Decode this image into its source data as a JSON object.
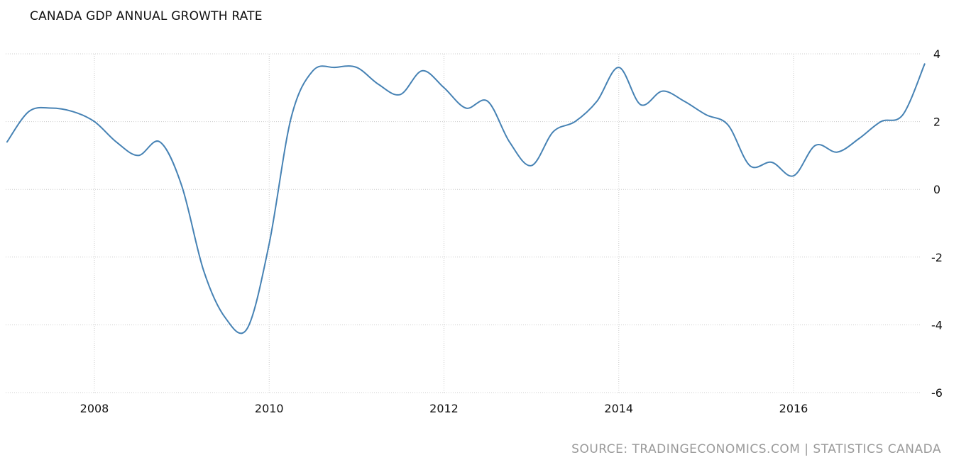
{
  "chart_data": {
    "type": "line",
    "title": "CANADA GDP ANNUAL GROWTH RATE",
    "source": "SOURCE: TRADINGECONOMICS.COM | STATISTICS CANADA",
    "xlabel": "",
    "ylabel": "",
    "x_ticks": [
      "2008",
      "2010",
      "2012",
      "2014",
      "2016"
    ],
    "y_ticks": [
      "4",
      "2",
      "0",
      "-2",
      "-4",
      "-6"
    ],
    "ylim": [
      -6,
      4
    ],
    "grid": true,
    "colors": {
      "line": "#4682b4",
      "grid": "#cccccc"
    },
    "series": [
      {
        "x": [
          2007.0,
          2007.25,
          2007.5,
          2007.75,
          2008.0,
          2008.25,
          2008.5,
          2008.75,
          2009.0,
          2009.25,
          2009.5,
          2009.75,
          2010.0,
          2010.25,
          2010.5,
          2010.75,
          2011.0,
          2011.25,
          2011.5,
          2011.75,
          2012.0,
          2012.25,
          2012.5,
          2012.75,
          2013.0,
          2013.25,
          2013.5,
          2013.75,
          2014.0,
          2014.25,
          2014.5,
          2014.75,
          2015.0,
          2015.25,
          2015.5,
          2015.75,
          2016.0,
          2016.25,
          2016.5,
          2016.75,
          2017.0,
          2017.25,
          2017.5
        ],
        "values": [
          1.4,
          2.3,
          2.4,
          2.3,
          2.0,
          1.4,
          1.0,
          1.4,
          0.1,
          -2.4,
          -3.8,
          -4.1,
          -1.6,
          2.1,
          3.5,
          3.6,
          3.6,
          3.1,
          2.8,
          3.5,
          3.0,
          2.4,
          2.6,
          1.4,
          0.7,
          1.7,
          2.0,
          2.6,
          3.6,
          2.5,
          2.9,
          2.6,
          2.2,
          1.9,
          0.7,
          0.8,
          0.4,
          1.3,
          1.1,
          1.5,
          2.0,
          2.2,
          3.7
        ]
      }
    ]
  }
}
